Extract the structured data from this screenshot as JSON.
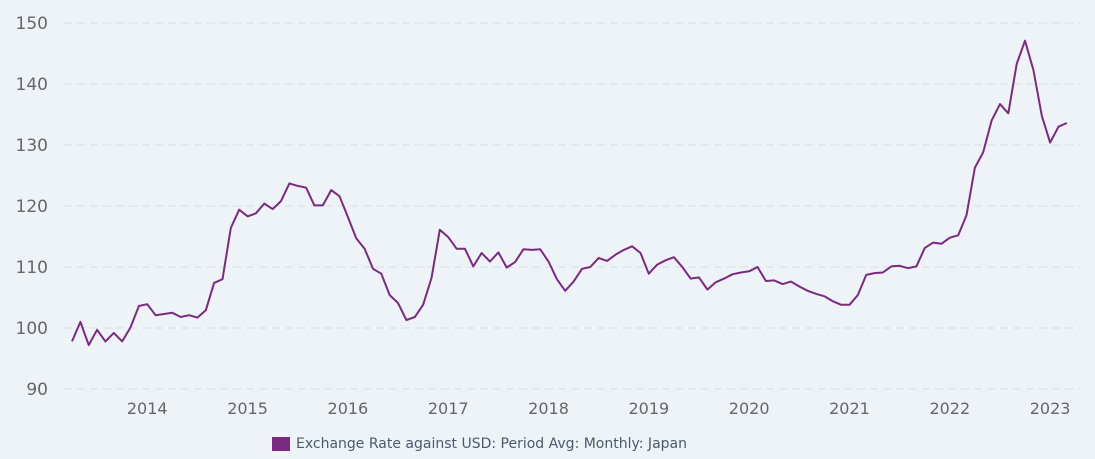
{
  "chart_data": {
    "type": "line",
    "title": "",
    "xlabel": "",
    "ylabel": "",
    "ylim": [
      90,
      150
    ],
    "yticks": [
      "90",
      "100",
      "110",
      "120",
      "130",
      "140",
      "150"
    ],
    "xticks": [
      "2014",
      "2015",
      "2016",
      "2017",
      "2018",
      "2019",
      "2020",
      "2021",
      "2022",
      "2023"
    ],
    "grid": true,
    "legend_placement": "bottom",
    "x_start": "2013-04",
    "x_end": "2023-03",
    "x_frequency": "monthly",
    "series": [
      {
        "name": "Exchange Rate against USD: Period Avg: Monthly: Japan",
        "color": "#7b2a82",
        "values": [
          97.8,
          101.0,
          97.2,
          99.7,
          97.8,
          99.2,
          97.8,
          100.1,
          103.6,
          103.9,
          102.1,
          102.3,
          102.5,
          101.8,
          102.1,
          101.7,
          102.9,
          107.4,
          108.0,
          116.4,
          119.4,
          118.3,
          118.8,
          120.4,
          119.5,
          120.8,
          123.7,
          123.3,
          123.0,
          120.1,
          120.1,
          122.6,
          121.6,
          118.2,
          114.7,
          113.0,
          109.7,
          108.9,
          105.4,
          104.1,
          101.3,
          101.8,
          103.8,
          108.2,
          116.1,
          114.9,
          113.0,
          113.0,
          110.1,
          112.3,
          110.9,
          112.4,
          109.9,
          110.8,
          112.9,
          112.8,
          112.9,
          110.9,
          108.0,
          106.1,
          107.6,
          109.7,
          110.0,
          111.5,
          111.0,
          112.0,
          112.8,
          113.4,
          112.3,
          108.9,
          110.4,
          111.1,
          111.6,
          110.0,
          108.1,
          108.3,
          106.3,
          107.5,
          108.1,
          108.8,
          109.1,
          109.3,
          110.0,
          107.7,
          107.8,
          107.2,
          107.6,
          106.8,
          106.1,
          105.6,
          105.2,
          104.4,
          103.8,
          103.8,
          105.4,
          108.7,
          109.0,
          109.1,
          110.1,
          110.2,
          109.8,
          110.1,
          113.1,
          114.0,
          113.8,
          114.8,
          115.2,
          118.5,
          126.3,
          128.8,
          134.0,
          136.7,
          135.2,
          143.3,
          147.1,
          142.3,
          134.8,
          130.4,
          133.0,
          133.6
        ]
      }
    ]
  }
}
